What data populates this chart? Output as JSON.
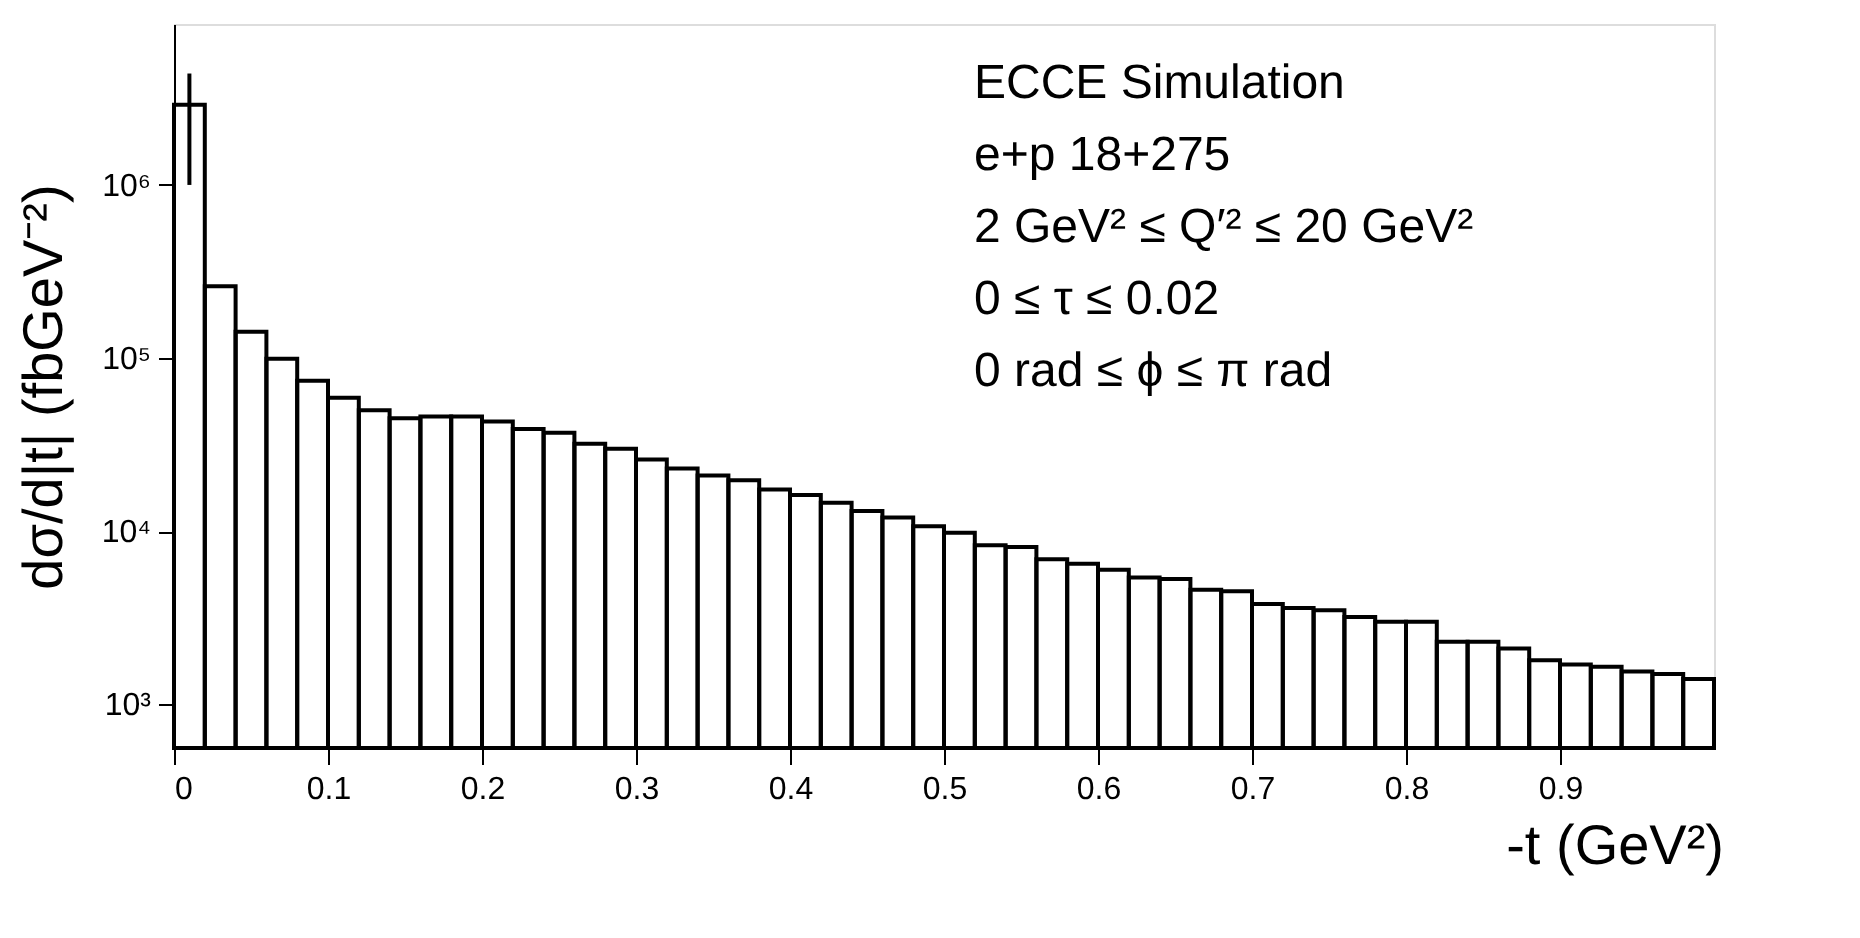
{
  "chart_data": {
    "type": "histogram",
    "xlabel": "-t (GeV²)",
    "ylabel": "dσ/d|t| (fbGeV⁻²)",
    "bins": [
      0,
      0.02,
      0.04,
      0.06,
      0.08,
      0.1,
      0.12,
      0.14,
      0.16,
      0.18,
      0.2,
      0.22,
      0.24,
      0.26,
      0.28,
      0.3,
      0.32,
      0.34,
      0.36,
      0.38,
      0.4,
      0.42,
      0.44,
      0.46,
      0.48,
      0.5,
      0.52,
      0.54,
      0.56,
      0.58,
      0.6,
      0.62,
      0.64,
      0.66,
      0.68,
      0.7,
      0.72,
      0.74,
      0.76,
      0.78,
      0.8,
      0.82,
      0.84,
      0.86,
      0.88,
      0.9,
      0.92,
      0.94,
      0.96,
      0.98,
      1.0
    ],
    "values": [
      2900000,
      260000,
      142000,
      99000,
      74000,
      59000,
      50000,
      45000,
      46000,
      46000,
      43000,
      39000,
      37000,
      32000,
      30000,
      26000,
      23000,
      21000,
      19700,
      17400,
      16200,
      14600,
      13100,
      12000,
      10700,
      9800,
      8300,
      8100,
      6900,
      6500,
      6000,
      5400,
      5300,
      4600,
      4500,
      3800,
      3600,
      3500,
      3200,
      3000,
      3000,
      2300,
      2300,
      2100,
      1800,
      1700,
      1650,
      1550,
      1500,
      1400
    ],
    "errors": [
      [
        1000000,
        4400000
      ],
      null,
      null,
      null,
      null,
      null,
      null,
      null,
      null,
      null,
      null,
      null,
      null,
      null,
      null,
      null,
      null,
      null,
      null,
      null,
      null,
      null,
      null,
      null,
      null,
      null,
      null,
      null,
      null,
      null,
      null,
      null,
      null,
      null,
      null,
      null,
      null,
      null,
      null,
      null,
      null,
      null,
      null,
      null,
      null,
      null,
      null,
      null,
      null,
      null
    ],
    "color": "#000000",
    "log": true,
    "xlim": [
      0,
      1
    ],
    "xticks": [
      0,
      0.1,
      0.2,
      0.3,
      0.4,
      0.5,
      0.6,
      0.7,
      0.8,
      0.9
    ],
    "ylim": [
      560,
      8500000
    ],
    "yticks": [
      {
        "value": 1000,
        "label": "10³"
      },
      {
        "value": 10000,
        "label": "10⁴"
      },
      {
        "value": 100000,
        "label": "10⁵"
      },
      {
        "value": 1000000,
        "label": "10⁶"
      }
    ],
    "grid": false,
    "annotations": [
      "ECCE Simulation",
      "e+p 18+275",
      "2 GeV² ≤ Q′² ≤ 20 GeV²",
      "0 ≤ τ ≤ 0.02",
      "0 rad ≤ ϕ ≤ π rad"
    ]
  }
}
